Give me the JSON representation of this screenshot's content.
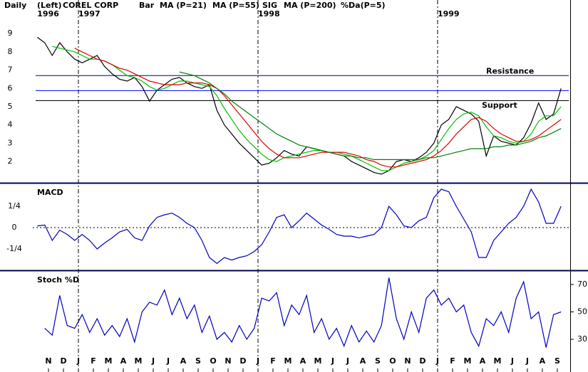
{
  "header": {
    "period": "Daily",
    "side": "(Left)",
    "symbol": "COREL CORP"
  },
  "chart_data": [
    {
      "type": "line",
      "years": [
        {
          "value": -0.75,
          "label": "1996"
        },
        {
          "value": 2,
          "label": "1997"
        },
        {
          "value": 14,
          "label": "1998"
        },
        {
          "value": 26,
          "label": "1999"
        }
      ],
      "xlim": [
        -3.24,
        34.86
      ],
      "ylim": [
        0.83,
        10.84
      ],
      "yticks": [
        2,
        3,
        4,
        5,
        6,
        7,
        8,
        9
      ],
      "hlines": [
        {
          "label": "Resistance",
          "value": 6.7,
          "color": "#000080"
        },
        {
          "value": 5.88,
          "color": "#0000ff"
        },
        {
          "label": "Support",
          "value": 5.33,
          "color": "#000000"
        }
      ],
      "x": [
        -0.75,
        -0.25,
        0.25,
        0.75,
        1.25,
        1.75,
        2.25,
        2.75,
        3.25,
        3.75,
        4.25,
        4.75,
        5.25,
        5.75,
        6.25,
        6.75,
        7.25,
        7.75,
        8.25,
        8.75,
        9.25,
        9.75,
        10.25,
        10.75,
        11.25,
        11.75,
        12.25,
        12.75,
        13.25,
        13.75,
        14.25,
        14.75,
        15.25,
        15.75,
        16.25,
        16.75,
        17.25,
        17.75,
        18.25,
        18.75,
        19.25,
        19.75,
        20.25,
        20.75,
        21.25,
        21.75,
        22.25,
        22.75,
        23.25,
        23.75,
        24.25,
        24.75,
        25.25,
        25.75,
        26.25,
        26.75,
        27.25,
        27.75,
        28.25,
        28.75,
        29.25,
        29.75,
        30.25,
        30.75,
        31.25,
        31.75,
        32.25,
        32.75,
        33.25,
        33.75,
        34.25
      ],
      "series": [
        {
          "name": "Bar",
          "color": "#000000",
          "values": [
            8.8,
            8.5,
            7.8,
            8.5,
            8.0,
            7.6,
            7.4,
            7.6,
            7.8,
            7.2,
            6.8,
            6.5,
            6.4,
            6.6,
            6.1,
            5.3,
            5.9,
            6.2,
            6.5,
            6.6,
            6.3,
            6.1,
            6.0,
            6.2,
            4.8,
            4.0,
            3.5,
            3.0,
            2.6,
            2.2,
            1.8,
            1.9,
            2.2,
            2.6,
            2.4,
            2.3,
            2.8,
            2.7,
            2.6,
            2.5,
            2.4,
            2.3,
            2.0,
            1.8,
            1.6,
            1.4,
            1.3,
            1.5,
            2.0,
            2.1,
            2.0,
            2.2,
            2.5,
            3.0,
            4.0,
            4.3,
            5.0,
            4.8,
            4.6,
            4.2,
            2.3,
            3.4,
            3.1,
            3.0,
            2.9,
            3.3,
            4.1,
            5.2,
            4.3,
            4.6,
            6.0
          ]
        },
        {
          "name": "MA (P=21)",
          "color": "#00c000",
          "values": [
            null,
            null,
            8.3,
            8.2,
            8.1,
            8.0,
            7.8,
            7.6,
            7.6,
            7.5,
            7.3,
            7.0,
            6.7,
            6.6,
            6.4,
            6.1,
            5.9,
            6.0,
            6.2,
            6.4,
            6.4,
            6.3,
            6.2,
            6.1,
            5.6,
            4.9,
            4.3,
            3.7,
            3.2,
            2.8,
            2.4,
            2.1,
            2.0,
            2.2,
            2.3,
            2.4,
            2.5,
            2.6,
            2.6,
            2.5,
            2.5,
            2.4,
            2.3,
            2.1,
            1.9,
            1.7,
            1.5,
            1.5,
            1.7,
            1.9,
            2.0,
            2.1,
            2.3,
            2.6,
            3.2,
            3.8,
            4.3,
            4.6,
            4.7,
            4.5,
            3.9,
            3.4,
            3.3,
            3.1,
            3.0,
            3.1,
            3.5,
            4.2,
            4.5,
            4.5,
            5.0
          ]
        },
        {
          "name": "MA (P=55)",
          "color": "#e00000",
          "values": [
            null,
            null,
            null,
            null,
            null,
            8.2,
            8.0,
            7.8,
            7.6,
            7.5,
            7.3,
            7.1,
            7.0,
            6.8,
            6.6,
            6.4,
            6.3,
            6.2,
            6.2,
            6.2,
            6.3,
            6.3,
            6.3,
            6.2,
            6.0,
            5.6,
            5.1,
            4.6,
            4.1,
            3.6,
            3.1,
            2.7,
            2.4,
            2.2,
            2.2,
            2.2,
            2.3,
            2.4,
            2.5,
            2.5,
            2.5,
            2.5,
            2.4,
            2.3,
            2.1,
            2.0,
            1.8,
            1.7,
            1.7,
            1.8,
            1.9,
            2.0,
            2.1,
            2.3,
            2.6,
            3.0,
            3.5,
            3.9,
            4.3,
            4.4,
            4.2,
            3.8,
            3.5,
            3.3,
            3.1,
            3.1,
            3.2,
            3.4,
            3.7,
            4.0,
            4.3
          ]
        },
        {
          "name": "MA (P=200)",
          "color": "#008000",
          "values": [
            null,
            null,
            null,
            null,
            null,
            null,
            null,
            null,
            null,
            null,
            null,
            null,
            null,
            null,
            null,
            null,
            null,
            null,
            null,
            6.9,
            6.8,
            6.7,
            6.5,
            6.3,
            6.0,
            5.7,
            5.3,
            5.0,
            4.7,
            4.4,
            4.1,
            3.8,
            3.5,
            3.3,
            3.1,
            2.9,
            2.8,
            2.7,
            2.6,
            2.5,
            2.4,
            2.3,
            2.3,
            2.2,
            2.2,
            2.1,
            2.1,
            2.1,
            2.1,
            2.1,
            2.1,
            2.1,
            2.2,
            2.2,
            2.3,
            2.4,
            2.5,
            2.6,
            2.7,
            2.7,
            2.7,
            2.8,
            2.8,
            2.9,
            2.9,
            3.0,
            3.1,
            3.3,
            3.4,
            3.6,
            3.8
          ]
        }
      ]
    },
    {
      "type": "line",
      "title": "MACD",
      "xlim": [
        -3.24,
        34.86
      ],
      "ylim": [
        -0.483,
        0.508
      ],
      "yticks": [
        {
          "value": 0.25,
          "label": "1/4"
        },
        0,
        {
          "value": -0.25,
          "label": "-1/4"
        }
      ],
      "x": [
        -0.75,
        -0.25,
        0.25,
        0.75,
        1.25,
        1.75,
        2.25,
        2.75,
        3.25,
        3.75,
        4.25,
        4.75,
        5.25,
        5.75,
        6.25,
        6.75,
        7.25,
        7.75,
        8.25,
        8.75,
        9.25,
        9.75,
        10.25,
        10.75,
        11.25,
        11.75,
        12.25,
        12.75,
        13.25,
        13.75,
        14.25,
        14.75,
        15.25,
        15.75,
        16.25,
        16.75,
        17.25,
        17.75,
        18.25,
        18.75,
        19.25,
        19.75,
        20.25,
        20.75,
        21.25,
        21.75,
        22.25,
        22.75,
        23.25,
        23.75,
        24.25,
        24.75,
        25.25,
        25.75,
        26.25,
        26.75,
        27.25,
        27.75,
        28.25,
        28.75,
        29.25,
        29.75,
        30.25,
        30.75,
        31.25,
        31.75,
        32.25,
        32.75,
        33.25,
        33.75,
        34.25
      ],
      "series": [
        {
          "name": "SIG",
          "color": "#0000c0",
          "values": [
            0.02,
            0.03,
            -0.15,
            -0.03,
            -0.08,
            -0.15,
            -0.08,
            -0.15,
            -0.25,
            -0.18,
            -0.12,
            -0.05,
            -0.02,
            -0.12,
            -0.15,
            0.02,
            0.12,
            0.15,
            0.17,
            0.12,
            0.05,
            0.0,
            -0.15,
            -0.35,
            -0.42,
            -0.35,
            -0.38,
            -0.35,
            -0.33,
            -0.28,
            -0.2,
            -0.05,
            0.12,
            0.15,
            0.0,
            0.08,
            0.17,
            0.1,
            0.03,
            -0.02,
            -0.08,
            -0.1,
            -0.1,
            -0.12,
            -0.1,
            -0.08,
            0.0,
            0.25,
            0.15,
            0.02,
            0.0,
            0.08,
            0.12,
            0.35,
            0.45,
            0.42,
            0.25,
            0.1,
            -0.05,
            -0.35,
            -0.35,
            -0.15,
            -0.05,
            0.05,
            0.12,
            0.25,
            0.45,
            0.3,
            0.05,
            0.05,
            0.25
          ]
        }
      ]
    },
    {
      "type": "line",
      "title": "Stoch %D",
      "xlim": [
        -3.24,
        34.86
      ],
      "ylim": [
        6.1,
        79.35
      ],
      "yticks": [
        70,
        50,
        30
      ],
      "xticks": [
        {
          "value": 0,
          "label": "N"
        },
        {
          "value": 1,
          "label": "D"
        },
        {
          "value": 2,
          "label": "J"
        },
        {
          "value": 3,
          "label": "F"
        },
        {
          "value": 4,
          "label": "M"
        },
        {
          "value": 5,
          "label": "A"
        },
        {
          "value": 6,
          "label": "M"
        },
        {
          "value": 7,
          "label": "J"
        },
        {
          "value": 8,
          "label": "J"
        },
        {
          "value": 9,
          "label": "A"
        },
        {
          "value": 10,
          "label": "S"
        },
        {
          "value": 11,
          "label": "O"
        },
        {
          "value": 12,
          "label": "N"
        },
        {
          "value": 13,
          "label": "D"
        },
        {
          "value": 14,
          "label": "J"
        },
        {
          "value": 15,
          "label": "F"
        },
        {
          "value": 16,
          "label": "M"
        },
        {
          "value": 17,
          "label": "A"
        },
        {
          "value": 18,
          "label": "M"
        },
        {
          "value": 19,
          "label": "J"
        },
        {
          "value": 20,
          "label": "J"
        },
        {
          "value": 21,
          "label": "A"
        },
        {
          "value": 22,
          "label": "S"
        },
        {
          "value": 23,
          "label": "O"
        },
        {
          "value": 24,
          "label": "N"
        },
        {
          "value": 25,
          "label": "D"
        },
        {
          "value": 26,
          "label": "J"
        },
        {
          "value": 27,
          "label": "F"
        },
        {
          "value": 28,
          "label": "M"
        },
        {
          "value": 29,
          "label": "A"
        },
        {
          "value": 30,
          "label": "M"
        },
        {
          "value": 31,
          "label": "J"
        },
        {
          "value": 32,
          "label": "J"
        },
        {
          "value": 33,
          "label": "A"
        },
        {
          "value": 34,
          "label": "S"
        }
      ],
      "x": [
        -0.75,
        -0.25,
        0.25,
        0.75,
        1.25,
        1.75,
        2.25,
        2.75,
        3.25,
        3.75,
        4.25,
        4.75,
        5.25,
        5.75,
        6.25,
        6.75,
        7.25,
        7.75,
        8.25,
        8.75,
        9.25,
        9.75,
        10.25,
        10.75,
        11.25,
        11.75,
        12.25,
        12.75,
        13.25,
        13.75,
        14.25,
        14.75,
        15.25,
        15.75,
        16.25,
        16.75,
        17.25,
        17.75,
        18.25,
        18.75,
        19.25,
        19.75,
        20.25,
        20.75,
        21.25,
        21.75,
        22.25,
        22.75,
        23.25,
        23.75,
        24.25,
        24.75,
        25.25,
        25.75,
        26.25,
        26.75,
        27.25,
        27.75,
        28.25,
        28.75,
        29.25,
        29.75,
        30.25,
        30.75,
        31.25,
        31.75,
        32.25,
        32.75,
        33.25,
        33.75,
        34.25
      ],
      "series": [
        {
          "name": "%Da(P=5)",
          "color": "#0000c0",
          "values": [
            null,
            38,
            33,
            62,
            40,
            38,
            48,
            35,
            45,
            33,
            40,
            32,
            45,
            28,
            50,
            57,
            55,
            66,
            48,
            60,
            45,
            55,
            35,
            47,
            30,
            35,
            28,
            40,
            30,
            38,
            60,
            58,
            64,
            40,
            55,
            48,
            62,
            35,
            45,
            30,
            38,
            25,
            40,
            28,
            36,
            28,
            40,
            75,
            45,
            30,
            50,
            35,
            60,
            66,
            55,
            60,
            50,
            55,
            35,
            25,
            45,
            40,
            50,
            35,
            60,
            72,
            45,
            50,
            24,
            48,
            50
          ]
        }
      ]
    }
  ]
}
